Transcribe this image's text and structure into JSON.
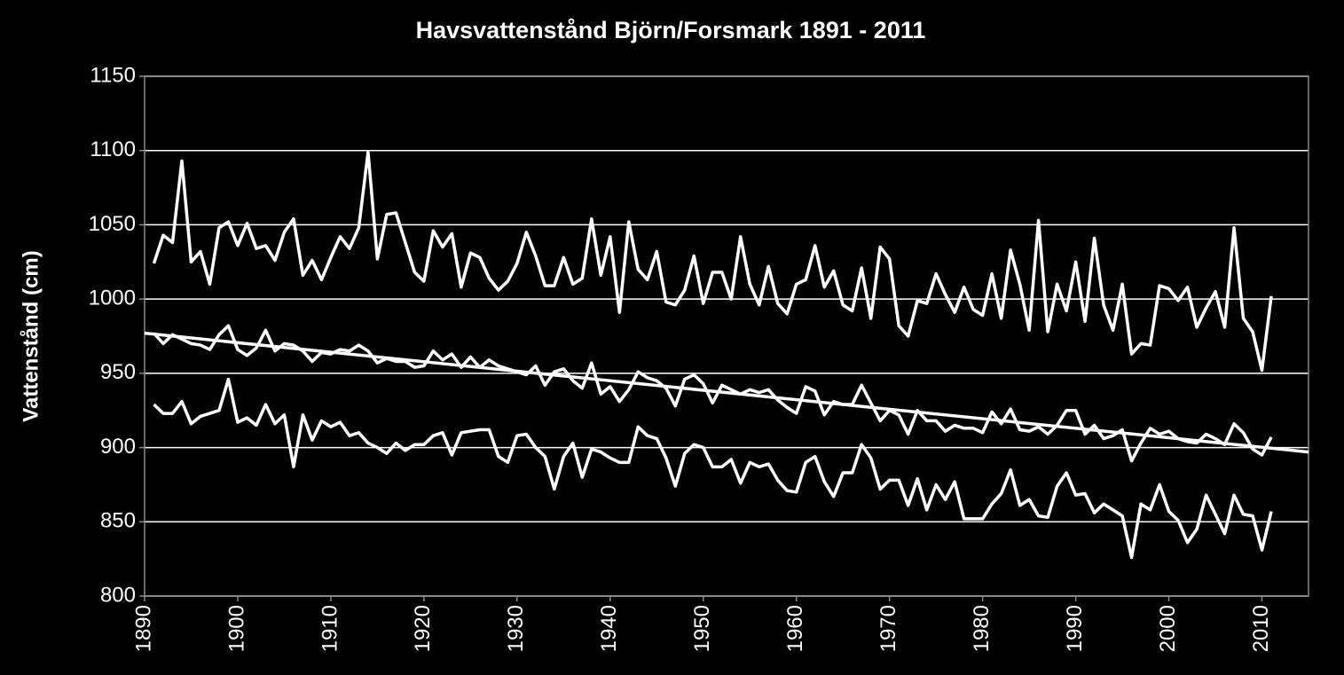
{
  "chart_data": {
    "type": "line",
    "title": "Havsvattenstånd Björn/Forsmark 1891 - 2011",
    "y_label": "Vattenstånd (cm)",
    "x": [
      1891,
      1892,
      1893,
      1894,
      1895,
      1896,
      1897,
      1898,
      1899,
      1900,
      1901,
      1902,
      1903,
      1904,
      1905,
      1906,
      1907,
      1908,
      1909,
      1910,
      1911,
      1912,
      1913,
      1914,
      1915,
      1916,
      1917,
      1918,
      1919,
      1920,
      1921,
      1922,
      1923,
      1924,
      1925,
      1926,
      1927,
      1928,
      1929,
      1930,
      1931,
      1932,
      1933,
      1934,
      1935,
      1936,
      1937,
      1938,
      1939,
      1940,
      1941,
      1942,
      1943,
      1944,
      1945,
      1946,
      1947,
      1948,
      1949,
      1950,
      1951,
      1952,
      1953,
      1954,
      1955,
      1956,
      1957,
      1958,
      1959,
      1960,
      1961,
      1962,
      1963,
      1964,
      1965,
      1966,
      1967,
      1968,
      1969,
      1970,
      1971,
      1972,
      1973,
      1974,
      1975,
      1976,
      1977,
      1978,
      1979,
      1980,
      1981,
      1982,
      1983,
      1984,
      1985,
      1986,
      1987,
      1988,
      1989,
      1990,
      1991,
      1992,
      1993,
      1994,
      1995,
      1996,
      1997,
      1998,
      1999,
      2000,
      2001,
      2002,
      2003,
      2004,
      2005,
      2006,
      2007,
      2008,
      2009,
      2010,
      2011
    ],
    "series": [
      {
        "color": "#ffffff",
        "values": [
          1024,
          1043,
          1038,
          1093,
          1025,
          1032,
          1010,
          1048,
          1052,
          1036,
          1051,
          1034,
          1036,
          1026,
          1045,
          1054,
          1016,
          1026,
          1013,
          1028,
          1042,
          1034,
          1048,
          1099,
          1027,
          1057,
          1058,
          1038,
          1018,
          1012,
          1046,
          1035,
          1044,
          1008,
          1031,
          1028,
          1014,
          1006,
          1012,
          1024,
          1045,
          1029,
          1009,
          1009,
          1028,
          1010,
          1014,
          1054,
          1016,
          1042,
          991,
          1052,
          1020,
          1013,
          1032,
          998,
          996,
          1006,
          1029,
          997,
          1018,
          1018,
          1000,
          1042,
          1010,
          996,
          1022,
          997,
          990,
          1010,
          1013,
          1036,
          1008,
          1019,
          996,
          992,
          1021,
          987,
          1035,
          1027,
          982,
          975,
          999,
          997,
          1017,
          1003,
          991,
          1008,
          993,
          989,
          1017,
          987,
          1033,
          1010,
          979,
          1053,
          978,
          1010,
          992,
          1025,
          985,
          1041,
          996,
          979,
          1010,
          963,
          970,
          969,
          1009,
          1007,
          999,
          1008,
          981,
          994,
          1005,
          981,
          1048,
          987,
          978,
          952,
          1002
        ]
      },
      {
        "color": "#ffffff",
        "values": [
          977,
          970,
          976,
          973,
          970,
          969,
          966,
          976,
          982,
          966,
          962,
          967,
          979,
          965,
          970,
          969,
          965,
          958,
          964,
          963,
          966,
          965,
          969,
          965,
          957,
          960,
          958,
          958,
          954,
          955,
          965,
          959,
          963,
          954,
          961,
          954,
          959,
          955,
          953,
          951,
          949,
          955,
          942,
          951,
          953,
          945,
          940,
          957,
          936,
          941,
          931,
          939,
          951,
          947,
          945,
          940,
          928,
          946,
          949,
          943,
          930,
          942,
          939,
          936,
          939,
          937,
          939,
          932,
          927,
          923,
          941,
          938,
          922,
          931,
          929,
          929,
          942,
          930,
          918,
          925,
          922,
          909,
          925,
          918,
          918,
          911,
          915,
          913,
          913,
          910,
          924,
          916,
          926,
          912,
          911,
          914,
          909,
          915,
          925,
          925,
          909,
          915,
          906,
          908,
          912,
          891,
          903,
          913,
          909,
          911,
          906,
          904,
          903,
          909,
          906,
          902,
          916,
          910,
          899,
          895,
          907
        ]
      },
      {
        "color": "#ffffff",
        "values": [
          929,
          923,
          923,
          931,
          916,
          921,
          923,
          925,
          946,
          917,
          920,
          915,
          929,
          916,
          922,
          887,
          922,
          905,
          918,
          914,
          917,
          908,
          910,
          903,
          900,
          896,
          903,
          898,
          902,
          902,
          908,
          910,
          895,
          910,
          911,
          912,
          912,
          894,
          890,
          908,
          909,
          900,
          894,
          872,
          894,
          903,
          880,
          899,
          897,
          893,
          890,
          890,
          914,
          908,
          906,
          893,
          874,
          896,
          902,
          900,
          887,
          887,
          892,
          876,
          890,
          887,
          889,
          878,
          871,
          870,
          890,
          894,
          877,
          867,
          883,
          883,
          902,
          893,
          872,
          878,
          878,
          861,
          879,
          858,
          875,
          865,
          877,
          852,
          852,
          852,
          862,
          869,
          885,
          861,
          865,
          854,
          853,
          874,
          883,
          868,
          869,
          856,
          862,
          858,
          854,
          826,
          862,
          858,
          875,
          857,
          851,
          836,
          845,
          868,
          855,
          842,
          868,
          855,
          854,
          831,
          857
        ]
      },
      {
        "color": "#ffffff",
        "x": [
          1890,
          2015
        ],
        "values": [
          977,
          897
        ]
      }
    ],
    "xlim": [
      1890,
      2015
    ],
    "xticks": [
      1890,
      1900,
      1910,
      1920,
      1930,
      1940,
      1950,
      1960,
      1970,
      1980,
      1990,
      2000,
      2010
    ],
    "ylim": [
      800,
      1150
    ],
    "yticks": [
      800,
      850,
      900,
      950,
      1000,
      1050,
      1100,
      1150
    ],
    "grid": true
  }
}
